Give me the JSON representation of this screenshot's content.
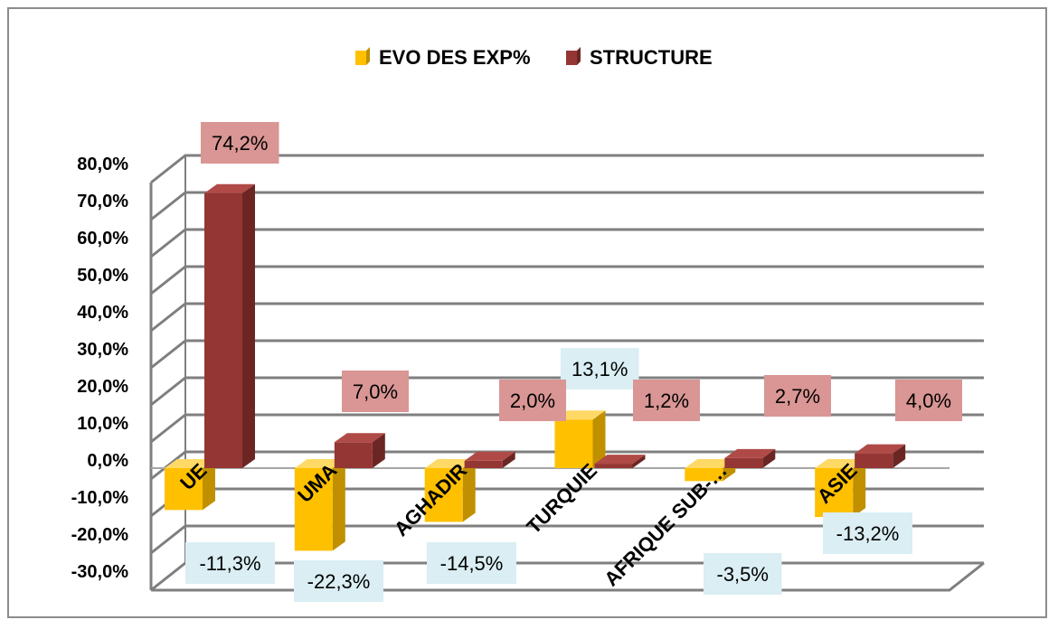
{
  "chart_data": {
    "type": "bar",
    "title": "",
    "categories": [
      "UE",
      "UMA",
      "AGHADIR",
      "TURQUIE",
      "AFRIQUE SUB-…",
      "ASIE"
    ],
    "series": [
      {
        "name": "EVO DES EXP%",
        "values": [
          -11.3,
          -22.3,
          -14.5,
          13.1,
          -3.5,
          -13.2
        ],
        "labels": [
          "-11,3%",
          "-22,3%",
          "-14,5%",
          "13,1%",
          "-3,5%",
          "-13,2%"
        ]
      },
      {
        "name": "STRUCTURE",
        "values": [
          74.2,
          7.0,
          2.0,
          1.2,
          2.7,
          4.0
        ],
        "labels": [
          "74,2%",
          "7,0%",
          "2,0%",
          "1,2%",
          "2,7%",
          "4,0%"
        ]
      }
    ],
    "y_ticks": [
      80,
      70,
      60,
      50,
      40,
      30,
      20,
      10,
      0,
      -10,
      -20,
      -30
    ],
    "y_tick_labels": [
      "80,0%",
      "70,0%",
      "60,0%",
      "50,0%",
      "40,0%",
      "30,0%",
      "20,0%",
      "10,0%",
      "0,0%",
      "-10,0%",
      "-20,0%",
      "-30,0%"
    ],
    "ylim": [
      -30,
      80
    ],
    "legend_position": "top",
    "grid": true,
    "style": "3d-column"
  },
  "colors": {
    "series1_front": "#FFC000",
    "series1_side": "#C09000",
    "series1_top": "#FFD966",
    "series2_front": "#943634",
    "series2_side": "#6B2624",
    "series2_top": "#B04A47",
    "label1_bg": "#DAEEF3",
    "label2_bg": "#D99694",
    "grid": "#7F7F7F"
  }
}
